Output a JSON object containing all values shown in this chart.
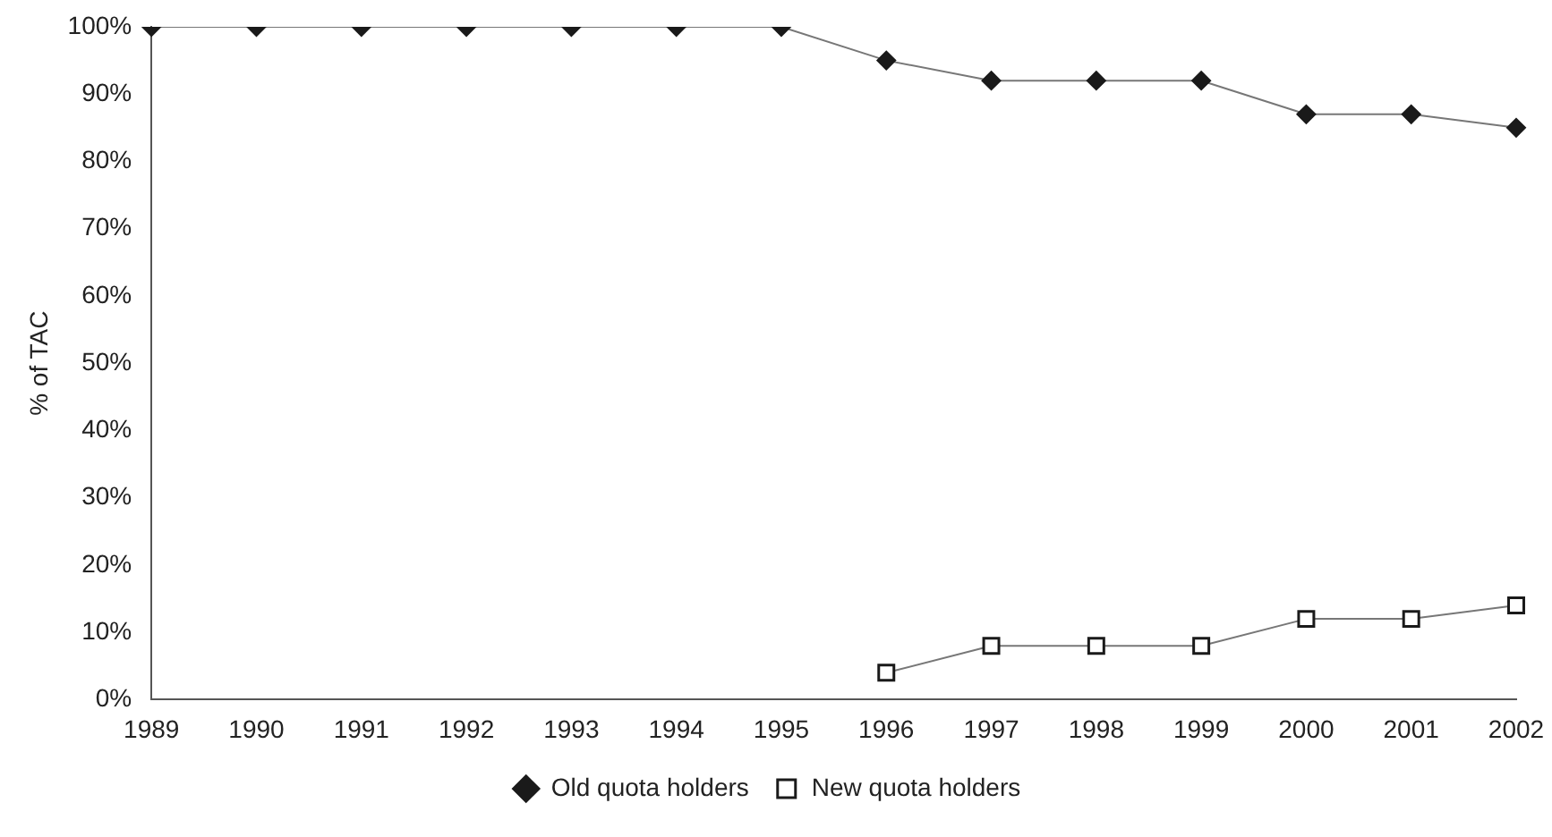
{
  "chart_data": {
    "type": "line",
    "ylabel": "% of TAC",
    "categories": [
      "1989",
      "1990",
      "1991",
      "1992",
      "1993",
      "1994",
      "1995",
      "1996",
      "1997",
      "1998",
      "1999",
      "2000",
      "2001",
      "2002"
    ],
    "series": [
      {
        "name": "Old quota holders",
        "color": "#1a1a1a",
        "marker": "diamond",
        "values": [
          100,
          100,
          100,
          100,
          100,
          100,
          100,
          95,
          92,
          92,
          92,
          87,
          87,
          85
        ]
      },
      {
        "name": "New quota holders",
        "color": "#1a1a1a",
        "marker": "square",
        "values": [
          null,
          null,
          null,
          null,
          null,
          null,
          null,
          4,
          8,
          8,
          8,
          12,
          12,
          14
        ]
      }
    ],
    "ylim": [
      0,
      100
    ],
    "yticks": [
      {
        "value": 0,
        "label": "0%"
      },
      {
        "value": 10,
        "label": "10%"
      },
      {
        "value": 20,
        "label": "20%"
      },
      {
        "value": 30,
        "label": "30%"
      },
      {
        "value": 40,
        "label": "40%"
      },
      {
        "value": 50,
        "label": "50%"
      },
      {
        "value": 60,
        "label": "60%"
      },
      {
        "value": 70,
        "label": "70%"
      },
      {
        "value": 80,
        "label": "80%"
      },
      {
        "value": 90,
        "label": "90%"
      },
      {
        "value": 100,
        "label": "100%"
      }
    ],
    "grid": false,
    "legend": "bottom"
  }
}
